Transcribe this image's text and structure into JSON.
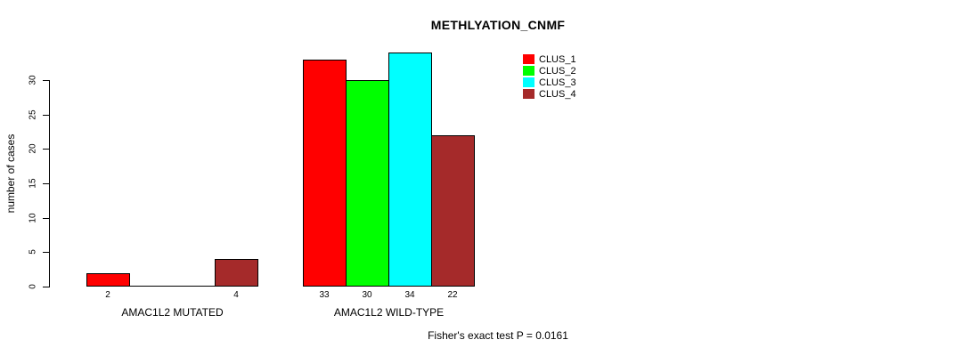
{
  "chart_data": {
    "type": "bar",
    "title": "METHLYATION_CNMF",
    "xlabel": "",
    "ylabel": "number of cases",
    "categories": [
      "AMAC1L2 MUTATED",
      "AMAC1L2 WILD-TYPE"
    ],
    "series": [
      {
        "name": "CLUS_1",
        "color": "#ff0000",
        "values": [
          2,
          33
        ]
      },
      {
        "name": "CLUS_2",
        "color": "#00ff00",
        "values": [
          0,
          30
        ]
      },
      {
        "name": "CLUS_3",
        "color": "#00ffff",
        "values": [
          0,
          34
        ]
      },
      {
        "name": "CLUS_4",
        "color": "#a52a2a",
        "values": [
          4,
          22
        ]
      }
    ],
    "bar_value_labels": [
      [
        "2",
        "",
        "",
        "4"
      ],
      [
        "33",
        "30",
        "34",
        "22"
      ]
    ],
    "y_ticks": [
      0,
      5,
      10,
      15,
      20,
      25,
      30
    ],
    "ylim": [
      0,
      30
    ],
    "grid": false,
    "legend_position": "top-right",
    "legend_entries": [
      "CLUS_1",
      "CLUS_2",
      "CLUS_3",
      "CLUS_4"
    ],
    "legend_colors": [
      "#ff0000",
      "#00ff00",
      "#00ffff",
      "#a52a2a"
    ],
    "annotation": "Fisher's exact test P = 0.0161"
  }
}
